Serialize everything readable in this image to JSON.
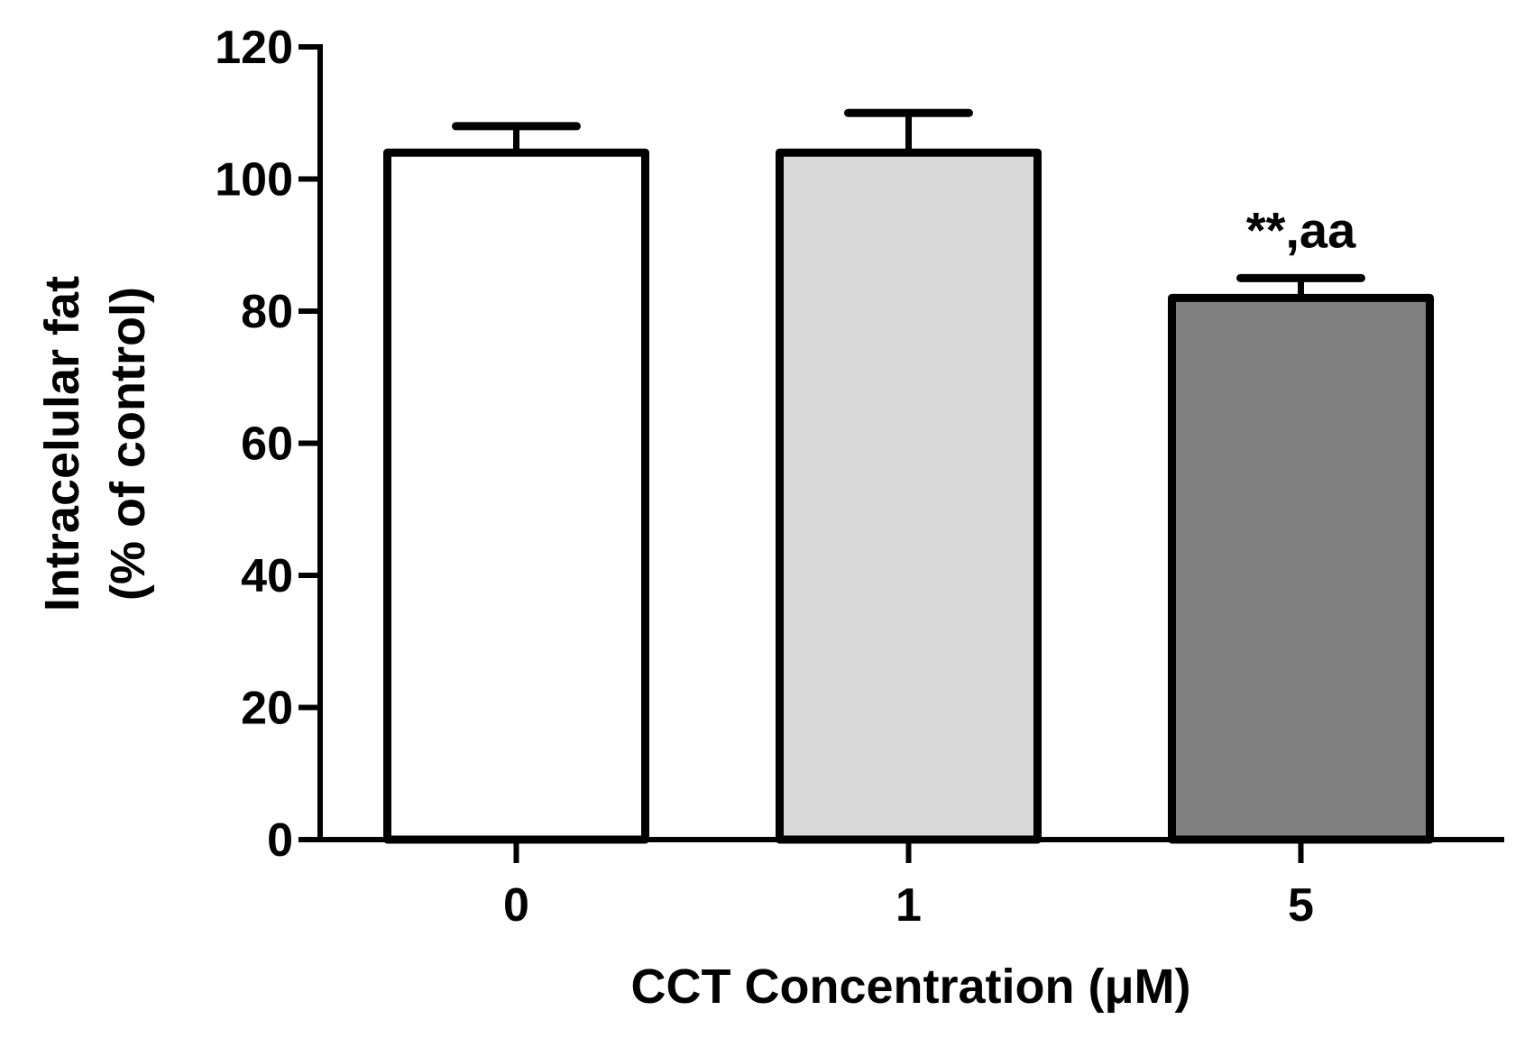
{
  "chart_data": {
    "type": "bar",
    "title": "",
    "xlabel": "CCT Concentration (μM)",
    "ylabel_lines": [
      "Intracelular fat",
      "(% of control)"
    ],
    "categories": [
      "0",
      "1",
      "5"
    ],
    "values": [
      104,
      104,
      82
    ],
    "errors": [
      4,
      6,
      3
    ],
    "ylim": [
      0,
      120
    ],
    "yticks": [
      0,
      20,
      40,
      60,
      80,
      100,
      120
    ],
    "ytick_labels": [
      "0",
      "20",
      "40",
      "60",
      "80",
      "100",
      "120"
    ],
    "bar_colors": [
      "#ffffff",
      "#d9d9d9",
      "#808080"
    ],
    "annotations": [
      {
        "category": "5",
        "text": "**,aa"
      }
    ],
    "grid": false,
    "legend": "none"
  }
}
